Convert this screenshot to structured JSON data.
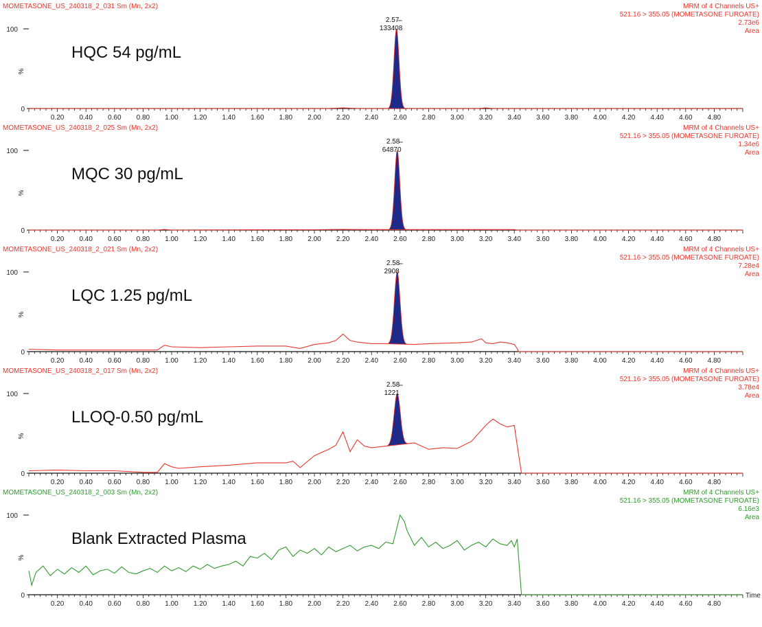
{
  "xaxis": {
    "label": "Time",
    "tick_labels": [
      "0.20",
      "0.40",
      "0.60",
      "0.80",
      "1.00",
      "1.20",
      "1.40",
      "1.60",
      "1.80",
      "2.00",
      "2.20",
      "2.40",
      "2.60",
      "2.80",
      "3.00",
      "3.20",
      "3.40",
      "3.60",
      "3.80",
      "4.00",
      "4.20",
      "4.40",
      "4.60",
      "4.80"
    ]
  },
  "yaxis": {
    "max_label": "100",
    "min_label": "0",
    "pct_label": "%"
  },
  "colors": {
    "red": "#e8362c",
    "green": "#2f9a2f",
    "peak_fill": "#1e2a8a",
    "axis": "#111111"
  },
  "chart_data": [
    {
      "type": "line",
      "header_left": "MOMETASONE_US_240318_2_031 Sm (Mn, 2x2)",
      "header_right": [
        "MRM of 4 Channels US+",
        "521.16 > 355.05 (MOMETASONE FUROATE)",
        "2.73e6",
        "Area"
      ],
      "sample_label": "HQC 54 pg/mL",
      "color": "red",
      "xlim": [
        0,
        5.0
      ],
      "ylim": [
        0,
        100
      ],
      "peak": {
        "rt_label": "2.57",
        "area_label": "133408",
        "rt": 2.575,
        "height": 100,
        "width": 0.018
      },
      "baseline": {
        "x": [
          0,
          2.1,
          2.2,
          2.25,
          2.3,
          2.8,
          3.15,
          3.2,
          3.25,
          3.4,
          5.0
        ],
        "y": [
          0,
          0,
          0.8,
          0.4,
          0,
          0,
          0,
          0.8,
          0,
          0,
          0
        ]
      }
    },
    {
      "type": "line",
      "header_left": "MOMETASONE_US_240318_2_025 Sm (Mn, 2x2)",
      "header_right": [
        "MRM of 4 Channels US+",
        "521.16 > 355.05 (MOMETASONE FUROATE)",
        "1.34e6",
        "Area"
      ],
      "sample_label": "MQC 30 pg/mL",
      "color": "red",
      "xlim": [
        0,
        5.0
      ],
      "ylim": [
        0,
        100
      ],
      "peak": {
        "rt_label": "2.58",
        "area_label": "64870",
        "rt": 2.58,
        "height": 100,
        "width": 0.018
      },
      "baseline": {
        "x": [
          0,
          0.9,
          0.95,
          1.0,
          1.8,
          2.0,
          2.2,
          2.4,
          3.4,
          3.42,
          5.0
        ],
        "y": [
          0,
          0,
          0.8,
          0,
          0.4,
          0.4,
          0.8,
          0.6,
          0.6,
          0,
          0
        ]
      }
    },
    {
      "type": "line",
      "header_left": "MOMETASONE_US_240318_2_021 Sm (Mn, 2x2)",
      "header_right": [
        "MRM of 4 Channels US+",
        "521.16 > 355.05 (MOMETASONE FUROATE)",
        "7.28e4",
        "Area"
      ],
      "sample_label": "LQC 1.25 pg/mL",
      "color": "red",
      "xlim": [
        0,
        5.0
      ],
      "ylim": [
        0,
        100
      ],
      "peak": {
        "rt_label": "2.58",
        "area_label": "2908",
        "rt": 2.58,
        "height": 100,
        "width": 0.02
      },
      "baseline": {
        "x": [
          0,
          0.2,
          0.4,
          0.6,
          0.8,
          0.9,
          0.95,
          1.0,
          1.2,
          1.4,
          1.6,
          1.8,
          1.9,
          2.0,
          2.1,
          2.15,
          2.2,
          2.25,
          2.3,
          2.4,
          2.5,
          2.7,
          2.8,
          3.0,
          3.1,
          3.17,
          3.2,
          3.25,
          3.3,
          3.35,
          3.4,
          3.42,
          3.43,
          5.0
        ],
        "y": [
          3,
          2,
          2,
          2,
          2,
          2,
          8,
          6,
          5,
          6,
          7,
          7,
          4,
          9,
          11,
          14,
          22,
          14,
          12,
          10,
          10,
          9,
          10,
          11,
          12,
          16,
          11,
          10,
          12,
          11,
          9,
          4,
          0,
          0
        ]
      }
    },
    {
      "type": "line",
      "header_left": "MOMETASONE_US_240318_2_017 Sm (Mn, 2x2)",
      "header_right": [
        "MRM of 4 Channels US+",
        "521.16 > 355.05 (MOMETASONE FUROATE)",
        "3.78e4",
        "Area"
      ],
      "sample_label": "LLOQ-0.50 pg/mL",
      "color": "red",
      "xlim": [
        0,
        5.0
      ],
      "ylim": [
        0,
        100
      ],
      "peak": {
        "rt_label": "2.58",
        "area_label": "1221",
        "rt": 2.58,
        "height": 100,
        "width": 0.022
      },
      "baseline": {
        "x": [
          0,
          0.2,
          0.4,
          0.6,
          0.8,
          0.9,
          0.95,
          1.0,
          1.05,
          1.2,
          1.4,
          1.6,
          1.8,
          1.85,
          1.9,
          2.0,
          2.1,
          2.15,
          2.2,
          2.25,
          2.3,
          2.35,
          2.4,
          2.5,
          2.7,
          2.8,
          2.9,
          3.0,
          3.1,
          3.2,
          3.25,
          3.3,
          3.35,
          3.4,
          3.42,
          3.45,
          5.0
        ],
        "y": [
          3,
          4,
          3,
          3,
          1,
          1,
          12,
          8,
          6,
          8,
          10,
          13,
          13,
          15,
          7,
          22,
          30,
          35,
          52,
          27,
          42,
          34,
          32,
          34,
          38,
          30,
          32,
          31,
          40,
          60,
          68,
          62,
          58,
          60,
          35,
          0,
          0
        ]
      }
    },
    {
      "type": "line",
      "header_left": "MOMETASONE_US_240318_2_003 Sm (Mn, 2x2)",
      "header_right": [
        "MRM of 4 Channels US+",
        "521.16 > 355.05 (MOMETASONE FUROATE)",
        "6.16e3",
        "Area"
      ],
      "sample_label": "Blank Extracted Plasma",
      "color": "green",
      "xlim": [
        0,
        5.0
      ],
      "ylim": [
        0,
        100
      ],
      "peak": null,
      "baseline": {
        "x": [
          0,
          0.02,
          0.05,
          0.1,
          0.15,
          0.2,
          0.25,
          0.3,
          0.35,
          0.4,
          0.45,
          0.5,
          0.55,
          0.6,
          0.65,
          0.7,
          0.75,
          0.8,
          0.85,
          0.9,
          0.95,
          1.0,
          1.05,
          1.1,
          1.15,
          1.2,
          1.25,
          1.3,
          1.35,
          1.4,
          1.45,
          1.5,
          1.55,
          1.6,
          1.65,
          1.7,
          1.75,
          1.8,
          1.85,
          1.9,
          1.95,
          2.0,
          2.05,
          2.1,
          2.15,
          2.2,
          2.25,
          2.3,
          2.35,
          2.4,
          2.45,
          2.5,
          2.55,
          2.6,
          2.63,
          2.65,
          2.7,
          2.75,
          2.8,
          2.85,
          2.9,
          2.95,
          3.0,
          3.05,
          3.1,
          3.15,
          3.2,
          3.25,
          3.3,
          3.35,
          3.38,
          3.4,
          3.42,
          3.45,
          5.0
        ],
        "y": [
          30,
          12,
          28,
          36,
          24,
          32,
          26,
          34,
          28,
          36,
          25,
          30,
          32,
          27,
          35,
          28,
          26,
          30,
          33,
          28,
          36,
          30,
          34,
          29,
          36,
          32,
          38,
          33,
          36,
          38,
          42,
          36,
          48,
          46,
          52,
          44,
          56,
          60,
          48,
          56,
          52,
          58,
          50,
          60,
          54,
          58,
          62,
          55,
          60,
          62,
          58,
          66,
          64,
          100,
          92,
          80,
          62,
          72,
          60,
          66,
          58,
          62,
          68,
          56,
          62,
          66,
          60,
          70,
          64,
          62,
          68,
          60,
          70,
          0,
          0
        ]
      }
    }
  ]
}
